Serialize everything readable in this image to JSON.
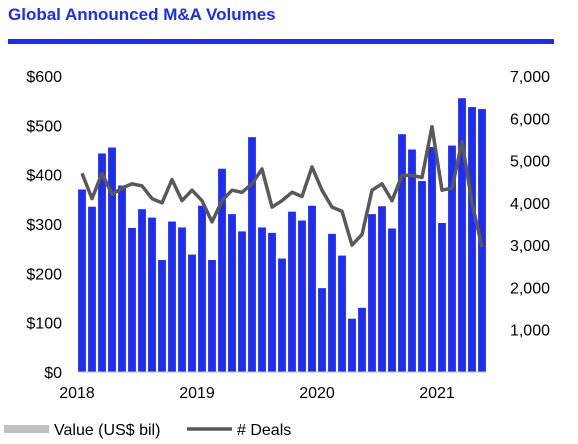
{
  "chart_data": {
    "type": "bar",
    "title": "Global Announced M&A Volumes",
    "x_ticks": [
      "2018",
      "2019",
      "2020",
      "2021"
    ],
    "y_left": {
      "min": 0,
      "max": 600,
      "step": 100,
      "ticks": [
        "$0",
        "$100",
        "$200",
        "$300",
        "$400",
        "$500",
        "$600"
      ]
    },
    "y_right": {
      "min": 0,
      "max": 7000,
      "ticks": [
        "1,000",
        "2,000",
        "3,000",
        "4,000",
        "5,000",
        "6,000",
        "7,000"
      ],
      "tick_values": [
        1000,
        2000,
        3000,
        4000,
        5000,
        6000,
        7000
      ]
    },
    "series": [
      {
        "name": "Value (US$ bil)",
        "type": "bar",
        "axis": "left",
        "color": "#1E2DF0",
        "values": [
          370,
          335,
          443,
          455,
          378,
          292,
          330,
          313,
          227,
          305,
          293,
          238,
          337,
          227,
          412,
          320,
          285,
          476,
          293,
          282,
          230,
          325,
          307,
          337,
          170,
          280,
          236,
          108,
          130,
          320,
          336,
          291,
          482,
          451,
          387,
          456,
          302,
          459,
          555,
          537,
          533
        ]
      },
      {
        "name": "# Deals",
        "type": "line",
        "axis": "right",
        "color": "#595959",
        "values": [
          4700,
          4100,
          4700,
          4200,
          4350,
          4450,
          4400,
          4100,
          4000,
          4550,
          4050,
          4300,
          4050,
          3550,
          4050,
          4300,
          4250,
          4450,
          4800,
          3900,
          4050,
          4250,
          4150,
          4850,
          4300,
          3900,
          3800,
          3000,
          3250,
          4300,
          4450,
          4050,
          4650,
          4650,
          4600,
          5800,
          4300,
          4350,
          5450,
          4000,
          2950
        ]
      }
    ],
    "legend": {
      "position": "bottom-left",
      "items": [
        "Value (US$ bil)",
        "# Deals"
      ]
    }
  }
}
